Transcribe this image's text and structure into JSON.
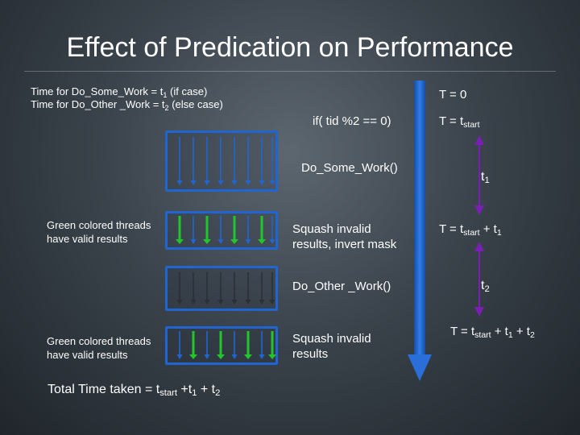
{
  "title": "Effect of Predication on Performance",
  "intro": {
    "line1_a": "Time for Do_Some_Work = t",
    "line1_sub": "1",
    "line1_b": " (if case)",
    "line2_a": "Time for Do_Other _Work = t",
    "line2_sub": "2",
    "line2_b": " (else case)"
  },
  "code": {
    "if_stmt": "if( tid %2 == 0)",
    "some_work": "Do_Some_Work()",
    "squash1_l1": "Squash invalid",
    "squash1_l2": "results, invert mask",
    "other_work": "Do_Other _Work()",
    "squash2_l1": "Squash invalid",
    "squash2_l2": "results"
  },
  "notes": {
    "green1_l1": "Green colored threads",
    "green1_l2": "have valid results",
    "green2_l1": "Green colored threads",
    "green2_l2": "have valid results"
  },
  "total": {
    "a": "Total Time taken = t",
    "sub1": "start",
    "b": " +t",
    "sub2": "1",
    "c": " + t",
    "sub3": "2"
  },
  "timeline": {
    "t0": "T = 0",
    "tstart_a": "T = t",
    "tstart_sub": "start",
    "t1_a": "t",
    "t1_sub": "1",
    "tsum1_a": "T = t",
    "tsum1_sub": "start",
    "tsum1_b": " + t",
    "tsum1_sub2": "1",
    "t2_a": "t",
    "t2_sub": "2",
    "tsum2_a": "T = t",
    "tsum2_sub": "start",
    "tsum2_b": " + t",
    "tsum2_sub2": "1",
    "tsum2_c": " + t",
    "tsum2_sub3": "2"
  },
  "colors": {
    "thread_active": "#1f66d2",
    "thread_green": "#22c52b",
    "box_border": "#1f66d2",
    "timeline": "#1f66d2",
    "duration": "#7a1fb3"
  },
  "thread_patterns": {
    "box1": [
      "blue",
      "blue",
      "blue",
      "blue",
      "blue",
      "blue",
      "blue",
      "blue"
    ],
    "box2": [
      "green",
      "blue",
      "green",
      "blue",
      "green",
      "blue",
      "green",
      "blue"
    ],
    "box3": [
      "dark",
      "dark",
      "dark",
      "dark",
      "dark",
      "dark",
      "dark",
      "dark"
    ],
    "box4": [
      "blue",
      "green",
      "blue",
      "green",
      "blue",
      "green",
      "blue",
      "green"
    ]
  }
}
